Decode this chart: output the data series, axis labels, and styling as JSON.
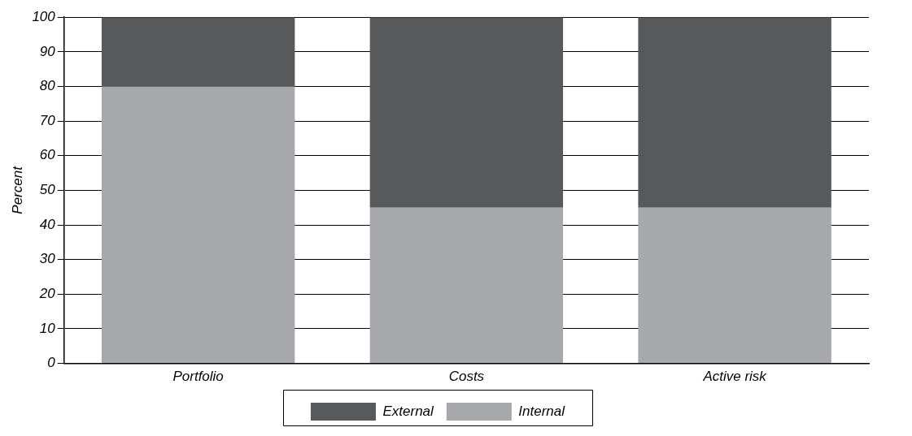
{
  "chart_data": {
    "type": "bar",
    "ylabel": "Percent",
    "categories": [
      "Portfolio",
      "Costs",
      "Active risk"
    ],
    "stacked": true,
    "series": [
      {
        "name": "Internal",
        "color": "#a7a8ab",
        "values": [
          80,
          45,
          45
        ]
      },
      {
        "name": "External",
        "color": "#58595b",
        "values": [
          20,
          55,
          55
        ]
      }
    ],
    "ylim": [
      0,
      100
    ],
    "yticks": [
      0,
      10,
      20,
      30,
      40,
      50,
      60,
      70,
      80,
      90,
      100
    ],
    "grid": "y",
    "legend": "bottom"
  }
}
